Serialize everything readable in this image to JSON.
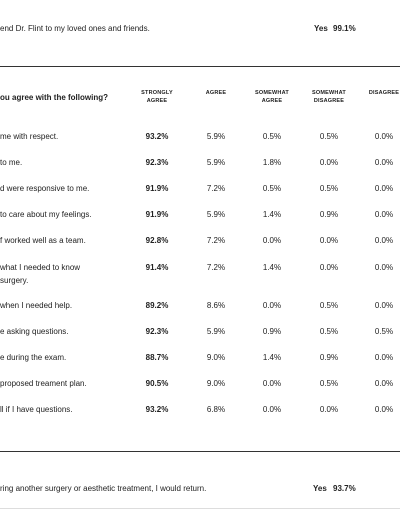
{
  "recommend": {
    "text": "end Dr. Flint to my loved ones and friends.",
    "answer": "Yes",
    "percent": "99.1%"
  },
  "table": {
    "title": "ou agree with the following?",
    "columns": [
      [
        "STRONGLY",
        "AGREE"
      ],
      [
        "AGREE"
      ],
      [
        "SOMEWHAT",
        "AGREE"
      ],
      [
        "SOMEWHAT",
        "DISAGREE"
      ],
      [
        "DISAGREE"
      ]
    ],
    "rows": [
      {
        "question": [
          "me with respect."
        ],
        "cells": [
          "93.2%",
          "5.9%",
          "0.5%",
          "0.5%",
          "0.0%"
        ]
      },
      {
        "question": [
          "to me."
        ],
        "cells": [
          "92.3%",
          "5.9%",
          "1.8%",
          "0.0%",
          "0.0%"
        ]
      },
      {
        "question": [
          "d were responsive to me."
        ],
        "cells": [
          "91.9%",
          "7.2%",
          "0.5%",
          "0.5%",
          "0.0%"
        ]
      },
      {
        "question": [
          "to care about my feelings."
        ],
        "cells": [
          "91.9%",
          "5.9%",
          "1.4%",
          "0.9%",
          "0.0%"
        ]
      },
      {
        "question": [
          "f worked well as a team."
        ],
        "cells": [
          "92.8%",
          "7.2%",
          "0.0%",
          "0.0%",
          "0.0%"
        ]
      },
      {
        "question": [
          "what I needed to know",
          "surgery."
        ],
        "cells": [
          "91.4%",
          "7.2%",
          "1.4%",
          "0.0%",
          "0.0%"
        ]
      },
      {
        "question": [
          "when I needed help."
        ],
        "cells": [
          "89.2%",
          "8.6%",
          "0.0%",
          "0.5%",
          "0.0%"
        ]
      },
      {
        "question": [
          "e asking questions."
        ],
        "cells": [
          "92.3%",
          "5.9%",
          "0.9%",
          "0.5%",
          "0.5%"
        ]
      },
      {
        "question": [
          "e during the exam."
        ],
        "cells": [
          "88.7%",
          "9.0%",
          "1.4%",
          "0.9%",
          "0.0%"
        ]
      },
      {
        "question": [
          "proposed treament plan."
        ],
        "cells": [
          "90.5%",
          "9.0%",
          "0.0%",
          "0.5%",
          "0.0%"
        ]
      },
      {
        "question": [
          "ll if I have questions."
        ],
        "cells": [
          "93.2%",
          "6.8%",
          "0.0%",
          "0.0%",
          "0.0%"
        ]
      }
    ]
  },
  "return": {
    "text": "ring another surgery or aesthetic treatment, I would return.",
    "answer": "Yes",
    "percent": "93.7%"
  }
}
